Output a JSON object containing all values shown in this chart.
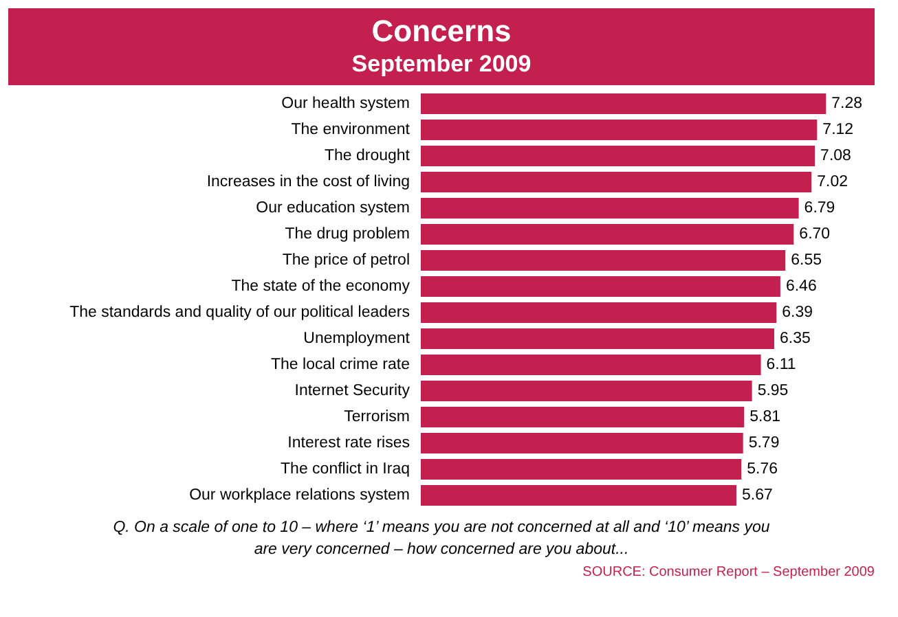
{
  "chart_data": {
    "type": "bar",
    "orientation": "horizontal",
    "title": "Concerns",
    "subtitle": "September 2009",
    "categories": [
      "Our health system",
      "The environment",
      "The drought",
      "Increases in the cost of living",
      "Our education system",
      "The drug problem",
      "The price of petrol",
      "The state of the economy",
      "The standards and quality of our political leaders",
      "Unemployment",
      "The local crime rate",
      "Internet Security",
      "Terrorism",
      "Interest rate rises",
      "The conflict in Iraq",
      "Our workplace relations system"
    ],
    "values": [
      7.28,
      7.12,
      7.08,
      7.02,
      6.79,
      6.7,
      6.55,
      6.46,
      6.39,
      6.35,
      6.11,
      5.95,
      5.81,
      5.79,
      5.76,
      5.67
    ],
    "color": "#c4204f",
    "value_labels": [
      "7.28",
      "7.12",
      "7.08",
      "7.02",
      "6.79",
      "6.70",
      "6.55",
      "6.46",
      "6.39",
      "6.35",
      "6.11",
      "5.95",
      "5.81",
      "5.79",
      "5.76",
      "5.67"
    ],
    "annotations": [
      "Q. On a scale of one to 10 – where ‘1’ means you are not concerned at all and ‘10’ means you are very concerned – how concerned are you about...",
      "SOURCE: Consumer Report – September 2009"
    ]
  }
}
